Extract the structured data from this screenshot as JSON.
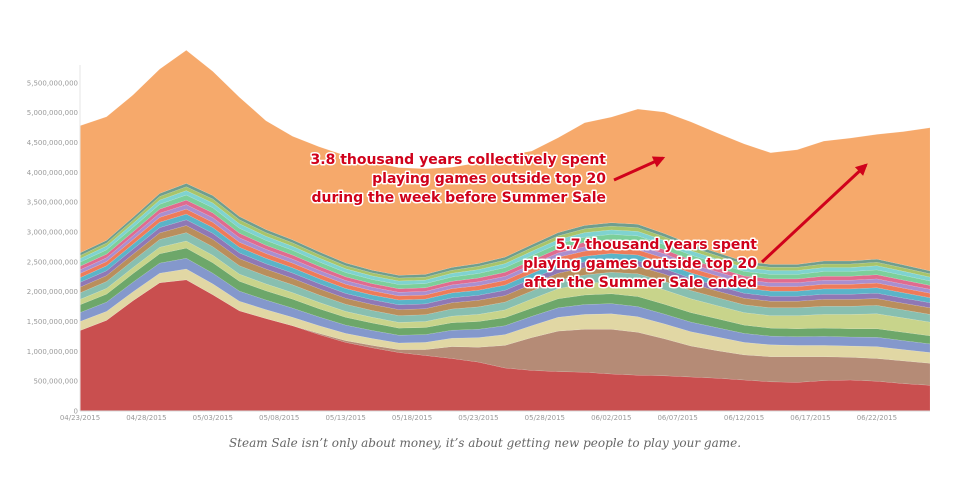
{
  "chart_data": {
    "type": "area",
    "stacked": true,
    "ylim": [
      0,
      5800000000
    ],
    "y_ticks": [
      "0",
      "500,000,000",
      "1,000,000,000",
      "1,500,000,000",
      "2,000,000,000",
      "2,500,000,000",
      "3,000,000,000",
      "3,500,000,000",
      "4,000,000,000",
      "4,500,000,000",
      "5,000,000,000",
      "5,500,000,000"
    ],
    "y_tick_values": [
      0,
      500000000,
      1000000000,
      1500000000,
      2000000000,
      2500000000,
      3000000000,
      3500000000,
      4000000000,
      4500000000,
      5000000000,
      5500000000
    ],
    "x_ticks": [
      "04/23/2015",
      "04/28/2015",
      "05/03/2015",
      "05/08/2015",
      "05/13/2015",
      "05/18/2015",
      "05/23/2015",
      "05/28/2015",
      "06/02/2015",
      "06/07/2015",
      "06/12/2015",
      "06/17/2015",
      "06/22/2015"
    ],
    "x": [
      "04/23/2015",
      "04/25/2015",
      "04/27/2015",
      "04/29/2015",
      "05/01/2015",
      "05/03/2015",
      "05/05/2015",
      "05/07/2015",
      "05/09/2015",
      "05/11/2015",
      "05/13/2015",
      "05/15/2015",
      "05/17/2015",
      "05/19/2015",
      "05/21/2015",
      "05/23/2015",
      "05/25/2015",
      "05/27/2015",
      "05/29/2015",
      "05/31/2015",
      "06/02/2015",
      "06/04/2015",
      "06/06/2015",
      "06/08/2015",
      "06/10/2015",
      "06/12/2015",
      "06/14/2015",
      "06/16/2015",
      "06/18/2015",
      "06/20/2015",
      "06/22/2015",
      "06/24/2015",
      "06/26/2015"
    ],
    "series": [
      {
        "color": "#c94f4f",
        "values": [
          1350,
          1520,
          1850,
          2150,
          2200,
          1950,
          1680,
          1550,
          1430,
          1280,
          1150,
          1060,
          980,
          930,
          880,
          820,
          720,
          680,
          660,
          650,
          620,
          600,
          590,
          570,
          550,
          520,
          490,
          480,
          510,
          520,
          500,
          460,
          430
        ]
      },
      {
        "color": "#b58b76",
        "values": [
          0,
          0,
          0,
          0,
          0,
          0,
          0,
          0,
          0,
          20,
          30,
          40,
          50,
          100,
          200,
          250,
          380,
          550,
          680,
          720,
          750,
          720,
          620,
          520,
          460,
          420,
          420,
          430,
          400,
          380,
          380,
          380,
          370
        ]
      },
      {
        "color": "#e1d7a4",
        "values": [
          150,
          150,
          150,
          160,
          180,
          180,
          160,
          150,
          140,
          130,
          120,
          115,
          110,
          120,
          140,
          160,
          180,
          200,
          230,
          250,
          260,
          260,
          250,
          240,
          230,
          210,
          200,
          190,
          190,
          190,
          200,
          190,
          180
        ]
      },
      {
        "color": "#8498cc",
        "values": [
          150,
          155,
          160,
          170,
          180,
          180,
          170,
          160,
          155,
          145,
          140,
          135,
          130,
          130,
          135,
          140,
          150,
          155,
          160,
          165,
          170,
          170,
          165,
          160,
          155,
          150,
          145,
          145,
          150,
          150,
          155,
          150,
          145
        ]
      },
      {
        "color": "#6da76a",
        "values": [
          130,
          135,
          145,
          155,
          170,
          175,
          165,
          155,
          150,
          140,
          130,
          125,
          120,
          120,
          125,
          130,
          135,
          140,
          150,
          160,
          165,
          170,
          165,
          160,
          150,
          140,
          135,
          135,
          140,
          140,
          145,
          140,
          135
        ]
      },
      {
        "color": "#c8d48b",
        "values": [
          90,
          95,
          100,
          110,
          120,
          125,
          120,
          115,
          110,
          105,
          100,
          95,
          95,
          100,
          110,
          120,
          130,
          150,
          170,
          190,
          210,
          230,
          240,
          230,
          220,
          210,
          210,
          220,
          230,
          240,
          250,
          240,
          230
        ]
      },
      {
        "color": "#88bfb0",
        "values": [
          110,
          115,
          120,
          130,
          140,
          145,
          140,
          135,
          130,
          125,
          120,
          115,
          115,
          115,
          120,
          125,
          130,
          135,
          140,
          145,
          150,
          150,
          145,
          140,
          135,
          130,
          130,
          130,
          135,
          135,
          140,
          135,
          130
        ]
      },
      {
        "color": "#b98e5c",
        "values": [
          95,
          100,
          105,
          110,
          120,
          125,
          120,
          115,
          110,
          105,
          100,
          100,
          100,
          100,
          105,
          110,
          110,
          115,
          120,
          125,
          125,
          125,
          120,
          115,
          110,
          110,
          110,
          110,
          115,
          115,
          115,
          110,
          110
        ]
      },
      {
        "color": "#8f78b5",
        "values": [
          80,
          82,
          85,
          90,
          95,
          98,
          95,
          90,
          88,
          85,
          82,
          80,
          80,
          80,
          82,
          85,
          88,
          90,
          92,
          95,
          95,
          95,
          92,
          90,
          88,
          85,
          85,
          85,
          88,
          88,
          90,
          88,
          85
        ]
      },
      {
        "color": "#5ab4c8",
        "values": [
          80,
          82,
          85,
          90,
          95,
          98,
          95,
          90,
          88,
          85,
          82,
          80,
          80,
          80,
          82,
          85,
          88,
          90,
          92,
          95,
          95,
          95,
          92,
          90,
          88,
          85,
          85,
          85,
          88,
          88,
          90,
          88,
          85
        ]
      },
      {
        "color": "#ee7b5a",
        "values": [
          70,
          72,
          75,
          80,
          85,
          88,
          85,
          80,
          78,
          75,
          72,
          70,
          70,
          70,
          72,
          75,
          78,
          80,
          82,
          85,
          85,
          85,
          82,
          80,
          78,
          75,
          75,
          75,
          78,
          78,
          80,
          78,
          75
        ]
      },
      {
        "color": "#a98fcf",
        "values": [
          60,
          62,
          65,
          70,
          75,
          78,
          75,
          70,
          68,
          65,
          62,
          60,
          60,
          60,
          62,
          65,
          68,
          70,
          72,
          75,
          75,
          75,
          72,
          70,
          68,
          65,
          65,
          65,
          68,
          68,
          70,
          68,
          65
        ]
      },
      {
        "color": "#e06b8f",
        "values": [
          60,
          62,
          65,
          70,
          75,
          78,
          75,
          70,
          68,
          65,
          62,
          60,
          60,
          60,
          62,
          65,
          68,
          70,
          72,
          75,
          75,
          75,
          72,
          70,
          68,
          65,
          65,
          65,
          68,
          68,
          70,
          68,
          65
        ]
      },
      {
        "color": "#7ccf9a",
        "values": [
          70,
          72,
          75,
          80,
          85,
          88,
          85,
          80,
          78,
          75,
          72,
          70,
          70,
          70,
          72,
          75,
          78,
          80,
          82,
          85,
          85,
          85,
          82,
          80,
          78,
          75,
          75,
          75,
          78,
          78,
          80,
          78,
          75
        ]
      },
      {
        "color": "#7fd3d0",
        "values": [
          60,
          62,
          65,
          70,
          75,
          78,
          75,
          70,
          68,
          65,
          62,
          60,
          60,
          60,
          62,
          65,
          68,
          70,
          72,
          75,
          75,
          75,
          72,
          70,
          68,
          65,
          65,
          65,
          68,
          68,
          70,
          68,
          65
        ]
      },
      {
        "color": "#a8c46a",
        "values": [
          50,
          52,
          55,
          60,
          65,
          68,
          65,
          60,
          58,
          55,
          52,
          50,
          50,
          50,
          52,
          55,
          58,
          60,
          62,
          65,
          65,
          65,
          62,
          60,
          58,
          55,
          55,
          55,
          58,
          58,
          60,
          58,
          55
        ]
      },
      {
        "color": "#6f9e8e",
        "values": [
          45,
          46,
          48,
          52,
          56,
          58,
          56,
          52,
          50,
          48,
          46,
          45,
          45,
          45,
          46,
          48,
          50,
          52,
          54,
          56,
          56,
          56,
          54,
          52,
          50,
          48,
          48,
          48,
          50,
          50,
          52,
          50,
          48
        ]
      },
      {
        "color": "#f6a96b",
        "values": [
          2130,
          2070,
          2050,
          2085,
          2230,
          2080,
          2000,
          1825,
          1735,
          1760,
          1800,
          1810,
          1805,
          1770,
          1680,
          1690,
          1700,
          1570,
          1590,
          1720,
          1770,
          1930,
          2035,
          2050,
          2005,
          1970,
          1870,
          1920,
          2010,
          2060,
          2090,
          2235,
          2400
        ]
      }
    ],
    "value_unit": "1,000,000",
    "annotations": [
      {
        "lines": [
          "3.8 thousand years collectively spent",
          "playing games outside top 20",
          "during the week before Summer Sale"
        ]
      },
      {
        "lines": [
          "5.7 thousand years spent",
          "playing games outside top 20",
          "after the Summer Sale ended"
        ]
      }
    ]
  },
  "caption": "Steam Sale isn’t only about money, it’s about getting new people to play your game."
}
